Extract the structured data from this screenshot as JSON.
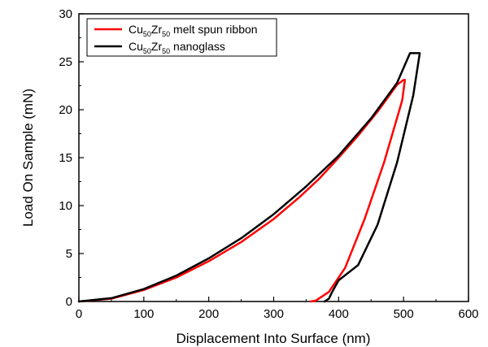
{
  "chart_data": {
    "type": "line",
    "title": "",
    "xlabel": "Displacement Into Surface (nm)",
    "ylabel": "Load On Sample (mN)",
    "xlim": [
      0,
      600
    ],
    "ylim": [
      0,
      30
    ],
    "xticks": [
      0,
      100,
      200,
      300,
      400,
      500,
      600
    ],
    "yticks": [
      0,
      5,
      10,
      15,
      20,
      25,
      30
    ],
    "xtick_labels": [
      "0",
      "100",
      "200",
      "300",
      "400",
      "500",
      "600"
    ],
    "ytick_labels": [
      "0",
      "5",
      "10",
      "15",
      "20",
      "25",
      "30"
    ],
    "grid": false,
    "legend_position": "top-left",
    "series": [
      {
        "name": "Cu50Zr50 melt spun ribbon",
        "legend": {
          "base1": "Cu",
          "sub1": "50",
          "base2": "Zr",
          "sub2": "50",
          "rest": " melt spun ribbon"
        },
        "color": "#ff0000",
        "x": [
          0,
          50,
          100,
          150,
          200,
          250,
          300,
          340,
          370,
          400,
          430,
          460,
          490,
          500,
          502,
          498,
          470,
          440,
          410,
          385,
          365,
          357
        ],
        "y": [
          0,
          0.3,
          1.2,
          2.5,
          4.2,
          6.2,
          8.6,
          10.9,
          12.8,
          15.0,
          17.3,
          19.8,
          22.6,
          23.1,
          23.1,
          21.0,
          14.5,
          8.6,
          3.5,
          1.0,
          0.1,
          0
        ]
      },
      {
        "name": "Cu50Zr50 nanoglass",
        "legend": {
          "base1": "Cu",
          "sub1": "50",
          "base2": "Zr",
          "sub2": "50",
          "rest": " nanoglass"
        },
        "color": "#000000",
        "x": [
          0,
          50,
          100,
          150,
          200,
          250,
          300,
          350,
          400,
          450,
          490,
          510,
          525,
          515,
          490,
          460,
          430,
          400,
          390,
          385,
          378
        ],
        "y": [
          0,
          0.35,
          1.3,
          2.7,
          4.5,
          6.6,
          9.1,
          12.0,
          15.2,
          19.1,
          22.8,
          25.9,
          25.9,
          21.5,
          14.5,
          8.0,
          3.8,
          2.2,
          1.0,
          0.3,
          0
        ]
      }
    ]
  }
}
